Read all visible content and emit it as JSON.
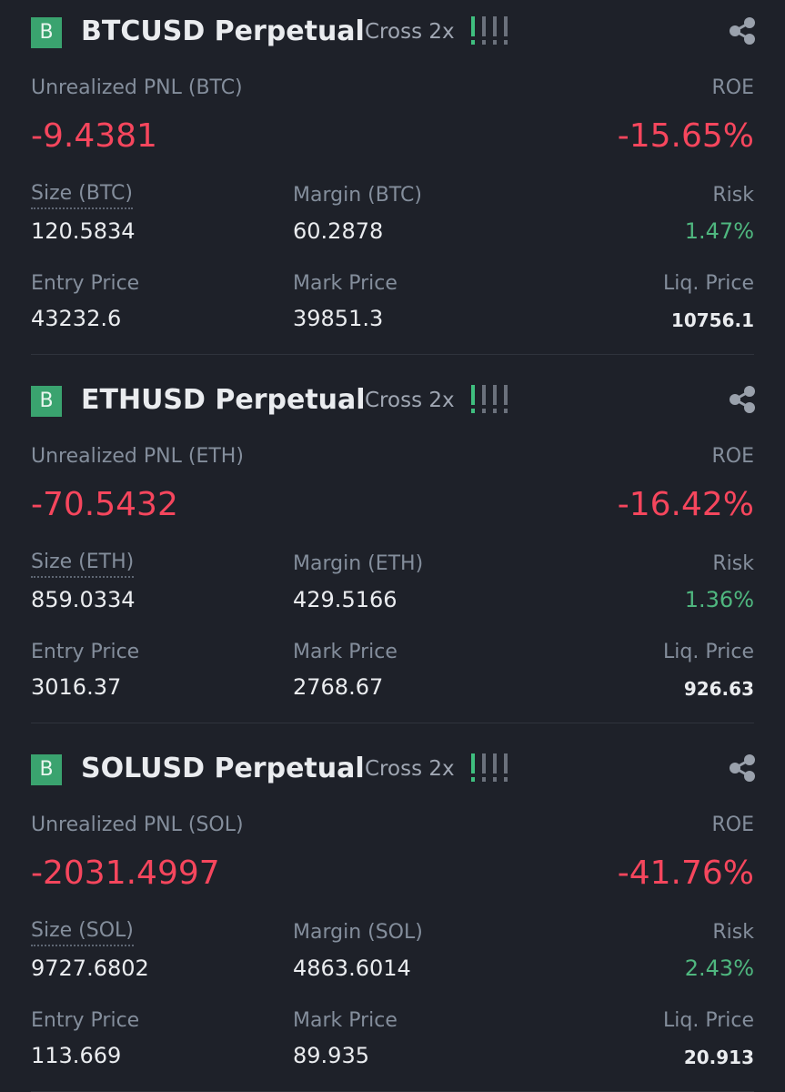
{
  "positions": [
    {
      "badge": "B",
      "symbol": "BTCUSD Perpetual",
      "margin_mode": "Cross 2x",
      "pnl_label": "Unrealized PNL (BTC)",
      "pnl": "-9.4381",
      "roe_label": "ROE",
      "roe": "-15.65%",
      "size_label": "Size (BTC)",
      "size": "120.5834",
      "margin_label": "Margin (BTC)",
      "margin": "60.2878",
      "risk_label": "Risk",
      "risk": "1.47%",
      "entry_label": "Entry Price",
      "entry": "43232.6",
      "mark_label": "Mark Price",
      "mark": "39851.3",
      "liq_label": "Liq. Price",
      "liq": "10756.1"
    },
    {
      "badge": "B",
      "symbol": "ETHUSD Perpetual",
      "margin_mode": "Cross 2x",
      "pnl_label": "Unrealized PNL (ETH)",
      "pnl": "-70.5432",
      "roe_label": "ROE",
      "roe": "-16.42%",
      "size_label": "Size (ETH)",
      "size": "859.0334",
      "margin_label": "Margin (ETH)",
      "margin": "429.5166",
      "risk_label": "Risk",
      "risk": "1.36%",
      "entry_label": "Entry Price",
      "entry": "3016.37",
      "mark_label": "Mark Price",
      "mark": "2768.67",
      "liq_label": "Liq. Price",
      "liq": "926.63"
    },
    {
      "badge": "B",
      "symbol": "SOLUSD Perpetual",
      "margin_mode": "Cross 2x",
      "pnl_label": "Unrealized PNL (SOL)",
      "pnl": "-2031.4997",
      "roe_label": "ROE",
      "roe": "-41.76%",
      "size_label": "Size (SOL)",
      "size": "9727.6802",
      "margin_label": "Margin (SOL)",
      "margin": "4863.6014",
      "risk_label": "Risk",
      "risk": "2.43%",
      "entry_label": "Entry Price",
      "entry": "113.669",
      "mark_label": "Mark Price",
      "mark": "89.935",
      "liq_label": "Liq. Price",
      "liq": "20.913"
    }
  ]
}
